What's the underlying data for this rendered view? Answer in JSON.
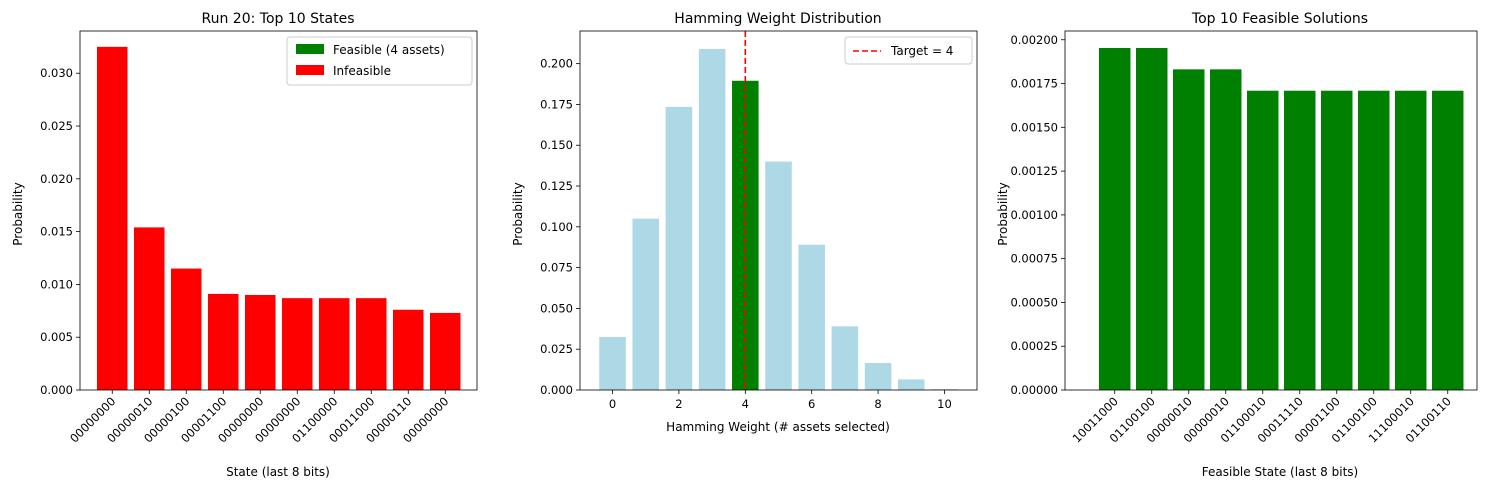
{
  "chart_data": [
    {
      "type": "bar",
      "title": "Run 20: Top 10 States",
      "xlabel": "State (last 8 bits)",
      "ylabel": "Probability",
      "categories": [
        "00000000",
        "00000010",
        "00000100",
        "00001100",
        "00000000",
        "00000000",
        "01100000",
        "00011000",
        "00000110",
        "00000000"
      ],
      "values": [
        0.0325,
        0.0154,
        0.0115,
        0.0091,
        0.009,
        0.0087,
        0.0087,
        0.0087,
        0.0076,
        0.0073
      ],
      "bar_colors": [
        "#ff0000",
        "#ff0000",
        "#ff0000",
        "#ff0000",
        "#ff0000",
        "#ff0000",
        "#ff0000",
        "#ff0000",
        "#ff0000",
        "#ff0000"
      ],
      "ylim": [
        0,
        0.034
      ],
      "yticks": [
        "0.000",
        "0.005",
        "0.010",
        "0.015",
        "0.020",
        "0.025",
        "0.030"
      ],
      "legend": {
        "placement": "upper right",
        "entries": [
          {
            "label": "Feasible (4 assets)",
            "color": "#008000"
          },
          {
            "label": "Infeasible",
            "color": "#ff0000"
          }
        ]
      }
    },
    {
      "type": "bar",
      "title": "Hamming Weight Distribution",
      "xlabel": "Hamming Weight (# assets selected)",
      "ylabel": "Probability",
      "x": [
        0,
        1,
        2,
        3,
        4,
        5,
        6,
        7,
        8,
        9,
        10
      ],
      "values": [
        0.0325,
        0.105,
        0.1735,
        0.209,
        0.1895,
        0.14,
        0.089,
        0.039,
        0.0165,
        0.0065,
        0.0005
      ],
      "bar_colors": [
        "#add8e6",
        "#add8e6",
        "#add8e6",
        "#add8e6",
        "#008000",
        "#add8e6",
        "#add8e6",
        "#add8e6",
        "#add8e6",
        "#add8e6",
        "#add8e6"
      ],
      "xlim": [
        -0.98,
        10.98
      ],
      "ylim": [
        0,
        0.22
      ],
      "xticks": [
        "0",
        "2",
        "4",
        "6",
        "8",
        "10"
      ],
      "yticks": [
        "0.000",
        "0.025",
        "0.050",
        "0.075",
        "0.100",
        "0.125",
        "0.150",
        "0.175",
        "0.200"
      ],
      "reference_line": {
        "x": 4,
        "color": "#ff0000",
        "style": "dashed"
      },
      "legend": {
        "placement": "upper right",
        "entries": [
          {
            "label": "Target = 4",
            "color": "#ff0000",
            "style": "dashed-line"
          }
        ]
      }
    },
    {
      "type": "bar",
      "title": "Top 10 Feasible Solutions",
      "xlabel": "Feasible State (last 8 bits)",
      "ylabel": "Probability",
      "categories": [
        "10011000",
        "01100100",
        "00000010",
        "00000010",
        "01100010",
        "00011110",
        "00001100",
        "01100100",
        "11100010",
        "01100110"
      ],
      "values": [
        0.001953,
        0.001953,
        0.001831,
        0.001831,
        0.001709,
        0.001709,
        0.001709,
        0.001709,
        0.001709,
        0.001709
      ],
      "bar_colors": [
        "#008000",
        "#008000",
        "#008000",
        "#008000",
        "#008000",
        "#008000",
        "#008000",
        "#008000",
        "#008000",
        "#008000"
      ],
      "ylim": [
        0,
        0.00205
      ],
      "yticks": [
        "0.00000",
        "0.00025",
        "0.00050",
        "0.00075",
        "0.00100",
        "0.00125",
        "0.00150",
        "0.00175",
        "0.00200"
      ]
    }
  ]
}
